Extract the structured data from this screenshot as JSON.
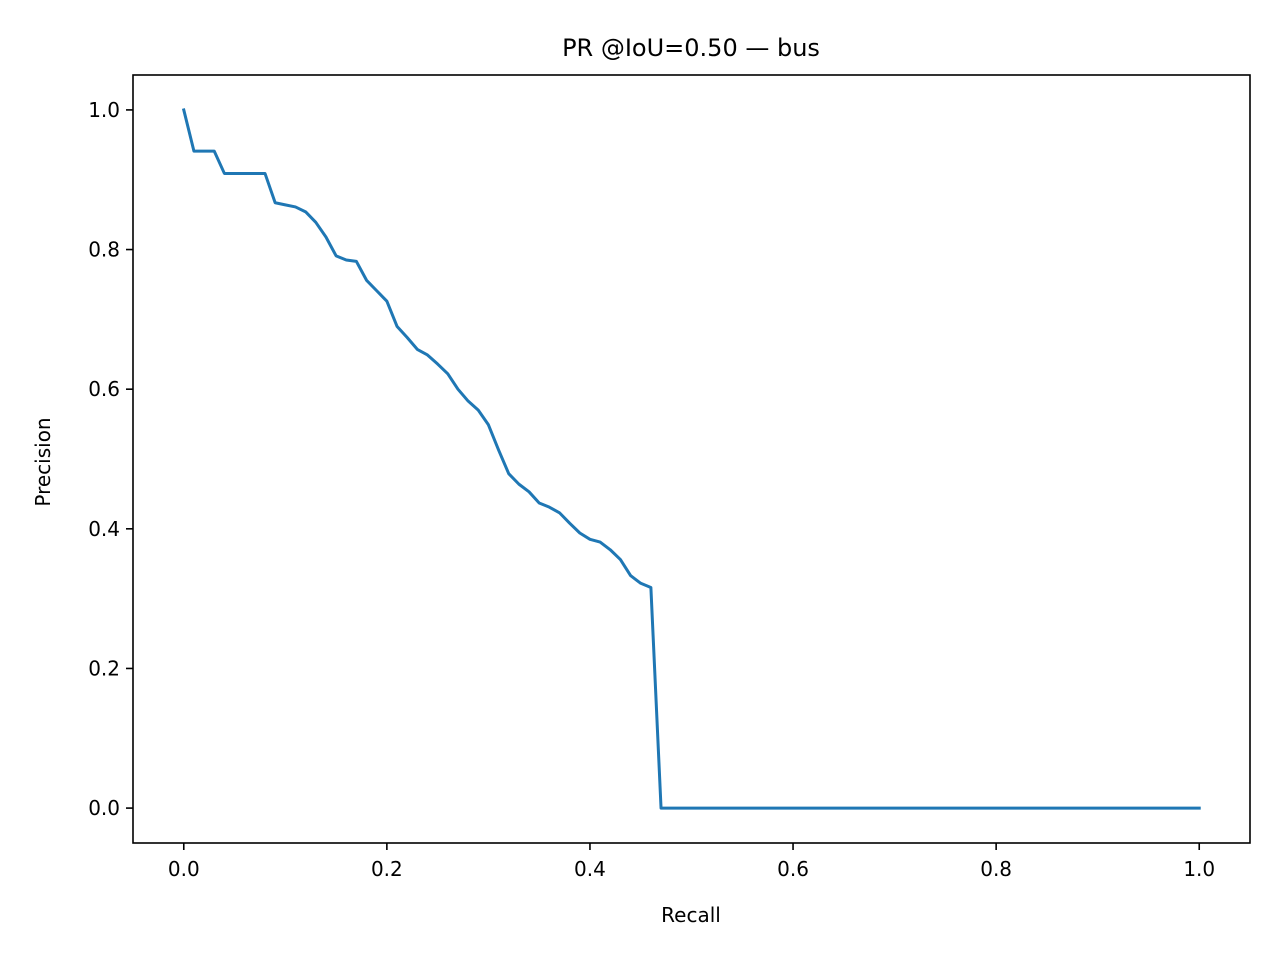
{
  "chart_data": {
    "type": "line",
    "title": "PR @IoU=0.50 — bus",
    "xlabel": "Recall",
    "ylabel": "Precision",
    "xlim": [
      -0.05,
      1.05
    ],
    "ylim": [
      -0.05,
      1.05
    ],
    "xticks": [
      0.0,
      0.2,
      0.4,
      0.6,
      0.8,
      1.0
    ],
    "yticks": [
      0.0,
      0.2,
      0.4,
      0.6,
      0.8,
      1.0
    ],
    "xtick_labels": [
      "0.0",
      "0.2",
      "0.4",
      "0.6",
      "0.8",
      "1.0"
    ],
    "ytick_labels": [
      "0.0",
      "0.2",
      "0.4",
      "0.6",
      "0.8",
      "1.0"
    ],
    "grid": false,
    "line_color": "#1f77b4",
    "series": [
      {
        "x": [
          0.0,
          0.01,
          0.02,
          0.03,
          0.04,
          0.05,
          0.06,
          0.07,
          0.08,
          0.09,
          0.1,
          0.11,
          0.12,
          0.13,
          0.14,
          0.15,
          0.16,
          0.17,
          0.18,
          0.19,
          0.2,
          0.21,
          0.22,
          0.23,
          0.24,
          0.25,
          0.26,
          0.27,
          0.28,
          0.29,
          0.3,
          0.31,
          0.32,
          0.33,
          0.34,
          0.35,
          0.36,
          0.37,
          0.38,
          0.39,
          0.4,
          0.41,
          0.42,
          0.43,
          0.44,
          0.45,
          0.46,
          0.47,
          1.0
        ],
        "y": [
          1.0,
          0.941,
          0.941,
          0.941,
          0.909,
          0.909,
          0.909,
          0.909,
          0.909,
          0.867,
          0.864,
          0.861,
          0.854,
          0.839,
          0.818,
          0.791,
          0.785,
          0.783,
          0.756,
          0.741,
          0.726,
          0.69,
          0.674,
          0.657,
          0.649,
          0.636,
          0.622,
          0.6,
          0.583,
          0.57,
          0.549,
          0.513,
          0.479,
          0.464,
          0.453,
          0.437,
          0.431,
          0.423,
          0.408,
          0.394,
          0.385,
          0.381,
          0.37,
          0.356,
          0.333,
          0.322,
          0.316,
          0.0,
          0.0
        ]
      }
    ]
  }
}
